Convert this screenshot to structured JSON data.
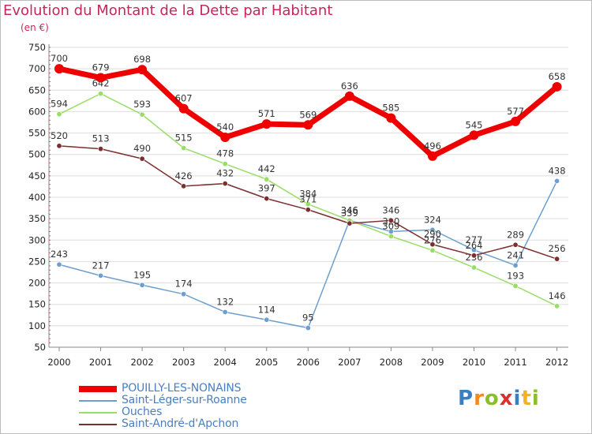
{
  "chart_data": {
    "type": "line",
    "title": "Evolution du Montant de la Dette par Habitant",
    "unit_label": "(en €)",
    "xlabel": "",
    "ylabel": "",
    "categories": [
      "2000",
      "2001",
      "2002",
      "2003",
      "2004",
      "2005",
      "2006",
      "2007",
      "2008",
      "2009",
      "2010",
      "2011",
      "2012"
    ],
    "ylim": [
      50,
      750
    ],
    "yticks": [
      50,
      100,
      150,
      200,
      250,
      300,
      350,
      400,
      450,
      500,
      550,
      600,
      650,
      700,
      750
    ],
    "grid": "horizontal",
    "legend_position": "bottom-left",
    "series": [
      {
        "name": "POUILLY-LES-NONAINS",
        "color": "#ee0000",
        "width": 7,
        "values": [
          700,
          679,
          698,
          607,
          540,
          571,
          569,
          636,
          585,
          496,
          545,
          577,
          658
        ],
        "labels": [
          "700",
          "679",
          "698",
          "607",
          "540",
          "571",
          "569",
          "636",
          "585",
          "496",
          "545",
          "577",
          "658"
        ]
      },
      {
        "name": "Saint-Léger-sur-Roanne",
        "color": "#6d9fce",
        "width": 1.5,
        "values": [
          243,
          217,
          195,
          174,
          132,
          114,
          95,
          346,
          320,
          324,
          277,
          241,
          438
        ],
        "labels": [
          "243",
          "217",
          "195",
          "174",
          "132",
          "114",
          "95",
          "346",
          "320",
          "324",
          "277",
          "241",
          "438"
        ]
      },
      {
        "name": "Ouches",
        "color": "#99dd66",
        "width": 1.5,
        "values": [
          594,
          642,
          593,
          515,
          478,
          442,
          384,
          346,
          309,
          276,
          236,
          193,
          146
        ],
        "labels": [
          "594",
          "642",
          "593",
          "515",
          "478",
          "442",
          "384",
          "346",
          "309",
          "276",
          "236",
          "193",
          "146"
        ]
      },
      {
        "name": "Saint-André-d'Apchon",
        "color": "#7a2e2e",
        "width": 1.5,
        "values": [
          520,
          513,
          490,
          426,
          432,
          397,
          371,
          339,
          346,
          290,
          264,
          289,
          256
        ],
        "labels": [
          "520",
          "513",
          "490",
          "426",
          "432",
          "397",
          "371",
          "339",
          "346",
          "290",
          "264",
          "289",
          "256"
        ]
      }
    ]
  },
  "logo": {
    "text": "Proxiti",
    "colors": [
      "#3a7fc4",
      "#f28a1e",
      "#8bbf2a",
      "#d8322f",
      "#3a7fc4",
      "#f2b41e",
      "#8bbf2a"
    ]
  }
}
